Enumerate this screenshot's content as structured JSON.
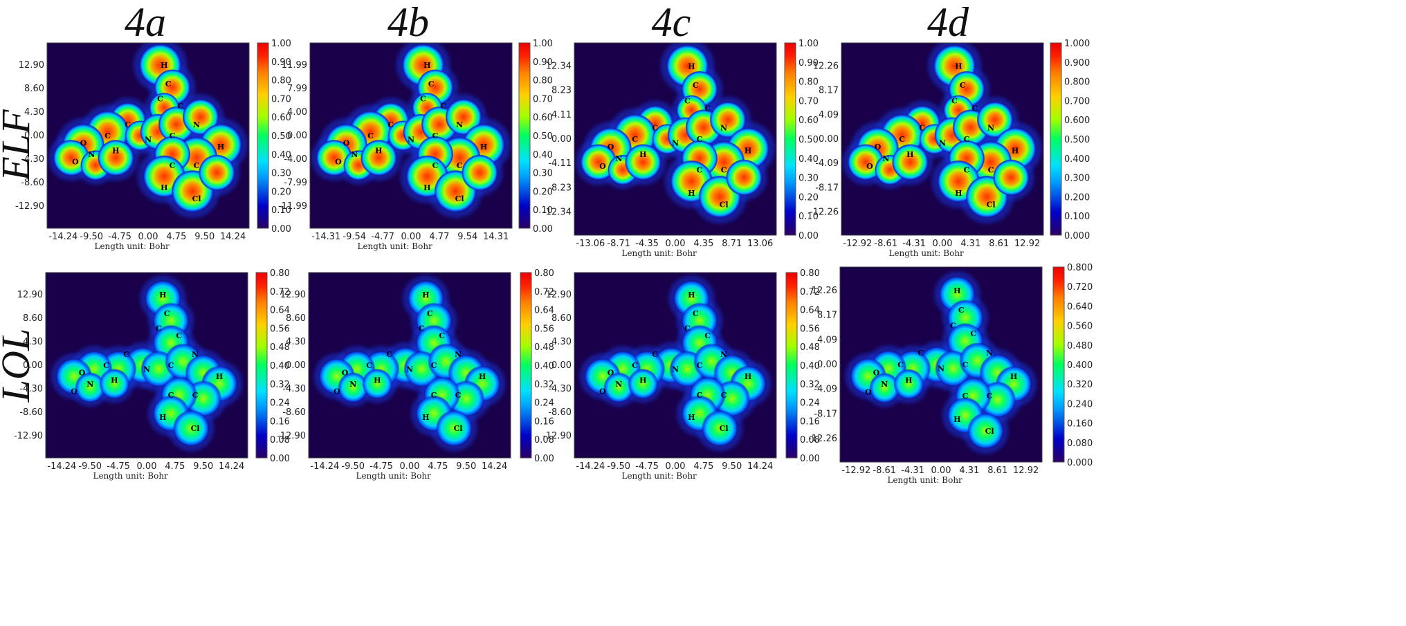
{
  "column_titles": [
    "4a",
    "4b",
    "4c",
    "4d"
  ],
  "row_titles": [
    "ELF",
    "LOL"
  ],
  "x_axis_unit": "Length unit: Bohr",
  "colors": {
    "background": "#1a004a",
    "cmap": [
      "#2b0063",
      "#0000c8",
      "#00a0ff",
      "#00e0ff",
      "#00ff60",
      "#a0ff00",
      "#ffd000",
      "#ff8000",
      "#ff2000",
      "#ee0000"
    ]
  },
  "panels": [
    {
      "row": "ELF",
      "col": "4a",
      "xticks": [
        "-14.24",
        "-9.50",
        "-4.75",
        "0.00",
        "4.75",
        "9.50",
        "14.24"
      ],
      "yticks": [
        "12.90",
        "8.60",
        "4.30",
        "0.00",
        "-4.30",
        "-8.60",
        "-12.90"
      ],
      "cbticks": [
        "1.00",
        "0.90",
        "0.80",
        "0.70",
        "0.60",
        "0.50",
        "0.40",
        "0.30",
        "0.20",
        "0.10",
        "0.00"
      ]
    },
    {
      "row": "ELF",
      "col": "4b",
      "xticks": [
        "-14.31",
        "-9.54",
        "-4.77",
        "0.00",
        "4.77",
        "9.54",
        "14.31"
      ],
      "yticks": [
        "11.99",
        "7.99",
        "4.00",
        "0.00",
        "-4.00",
        "-7.99",
        "-11.99"
      ],
      "cbticks": [
        "1.00",
        "0.90",
        "0.80",
        "0.70",
        "0.60",
        "0.50",
        "0.40",
        "0.30",
        "0.20",
        "0.10",
        "0.00"
      ]
    },
    {
      "row": "ELF",
      "col": "4c",
      "xticks": [
        "-13.06",
        "-8.71",
        "-4.35",
        "0.00",
        "4.35",
        "8.71",
        "13.06"
      ],
      "yticks": [
        "12.34",
        "8.23",
        "4.11",
        "0.00",
        "-4.11",
        "-8.23",
        "-12.34"
      ],
      "cbticks": [
        "1.00",
        "0.90",
        "0.80",
        "0.70",
        "0.60",
        "0.50",
        "0.40",
        "0.30",
        "0.20",
        "0.10",
        "0.00"
      ]
    },
    {
      "row": "ELF",
      "col": "4d",
      "xticks": [
        "-12.92",
        "-8.61",
        "-4.31",
        "0.00",
        "4.31",
        "8.61",
        "12.92"
      ],
      "yticks": [
        "12.26",
        "8.17",
        "4.09",
        "0.00",
        "-4.09",
        "-8.17",
        "-12.26"
      ],
      "cbticks": [
        "1.000",
        "0.900",
        "0.800",
        "0.700",
        "0.600",
        "0.500",
        "0.400",
        "0.300",
        "0.200",
        "0.100",
        "0.000"
      ]
    },
    {
      "row": "LOL",
      "col": "4a",
      "xticks": [
        "-14.24",
        "-9.50",
        "-4.75",
        "0.00",
        "4.75",
        "9.50",
        "14.24"
      ],
      "yticks": [
        "12.90",
        "8.60",
        "4.30",
        "0.00",
        "-4.30",
        "-8.60",
        "-12.90"
      ],
      "cbticks": [
        "0.80",
        "0.72",
        "0.64",
        "0.56",
        "0.48",
        "0.40",
        "0.32",
        "0.24",
        "0.16",
        "0.08",
        "0.00"
      ]
    },
    {
      "row": "LOL",
      "col": "4b",
      "xticks": [
        "-14.24",
        "-9.50",
        "-4.75",
        "0.00",
        "4.75",
        "9.50",
        "14.24"
      ],
      "yticks": [
        "12.90",
        "8.60",
        "4.30",
        "0.00",
        "-4.30",
        "-8.60",
        "-12.90"
      ],
      "cbticks": [
        "0.80",
        "0.72",
        "0.64",
        "0.56",
        "0.48",
        "0.40",
        "0.32",
        "0.24",
        "0.16",
        "0.08",
        "0.00"
      ]
    },
    {
      "row": "LOL",
      "col": "4c",
      "xticks": [
        "-14.24",
        "-9.50",
        "-4.75",
        "0.00",
        "4.75",
        "9.50",
        "14.24"
      ],
      "yticks": [
        "12.90",
        "8.60",
        "4.30",
        "0.00",
        "-4.30",
        "-8.60",
        "-12.90"
      ],
      "cbticks": [
        "0.80",
        "0.72",
        "0.64",
        "0.56",
        "0.48",
        "0.40",
        "0.32",
        "0.24",
        "0.16",
        "0.08",
        "0.00"
      ]
    },
    {
      "row": "LOL",
      "col": "4d",
      "xticks": [
        "-12.92",
        "-8.61",
        "-4.31",
        "0.00",
        "4.31",
        "8.61",
        "12.92"
      ],
      "yticks": [
        "12.26",
        "8.17",
        "4.09",
        "0.00",
        "-4.09",
        "-8.17",
        "-12.26"
      ],
      "cbticks": [
        "0.800",
        "0.720",
        "0.640",
        "0.560",
        "0.480",
        "0.400",
        "0.320",
        "0.240",
        "0.160",
        "0.080",
        "0.000"
      ]
    }
  ]
}
